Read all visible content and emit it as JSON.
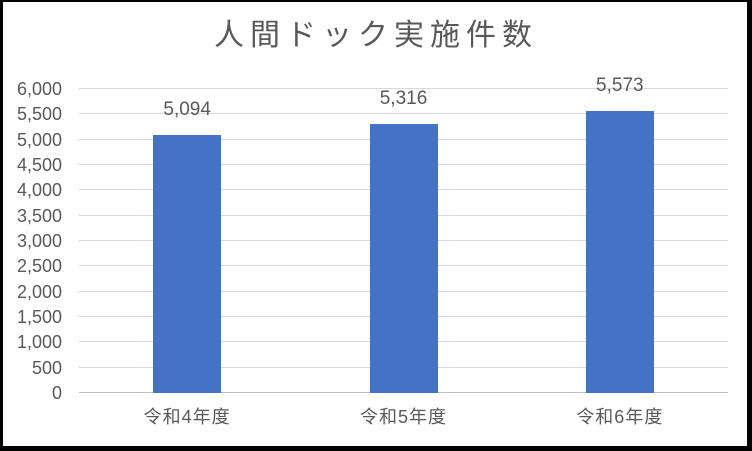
{
  "chart_data": {
    "type": "bar",
    "title": "人間ドック実施件数",
    "categories": [
      "令和4年度",
      "令和5年度",
      "令和6年度"
    ],
    "values": [
      5094,
      5316,
      5573
    ],
    "value_labels": [
      "5,094",
      "5,316",
      "5,573"
    ],
    "ylim": [
      0,
      6000
    ],
    "ytick_step": 500,
    "yticks": [
      {
        "value": 0,
        "label": "0"
      },
      {
        "value": 500,
        "label": "500"
      },
      {
        "value": 1000,
        "label": "1,000"
      },
      {
        "value": 1500,
        "label": "1,500"
      },
      {
        "value": 2000,
        "label": "2,000"
      },
      {
        "value": 2500,
        "label": "2,500"
      },
      {
        "value": 3000,
        "label": "3,000"
      },
      {
        "value": 3500,
        "label": "3,500"
      },
      {
        "value": 4000,
        "label": "4,000"
      },
      {
        "value": 4500,
        "label": "4,500"
      },
      {
        "value": 5000,
        "label": "5,000"
      },
      {
        "value": 5500,
        "label": "5,500"
      },
      {
        "value": 6000,
        "label": "6,000"
      }
    ],
    "grid": true,
    "legend": "none",
    "xlabel": "",
    "ylabel": "",
    "colors": {
      "bar": "#4472C4",
      "gridline": "#D9D9D9",
      "axis_line": "#BFBFBF",
      "text": "#595959",
      "background": "#FFFFFF",
      "border": "#000000"
    }
  }
}
